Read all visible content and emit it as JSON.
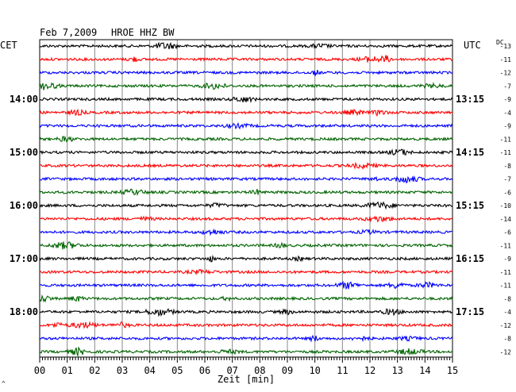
{
  "header": {
    "date": "Feb 7,2009",
    "station": "HROE HHZ BW",
    "left_tz": "CET",
    "right_tz": "UTC",
    "dc_label": "DC"
  },
  "footer": {
    "xlabel": "Zeit [min]",
    "corner_mark": "^"
  },
  "chart_data": {
    "type": "line",
    "title": "Feb 7,2009   HROE HHZ BW",
    "xlabel": "Zeit [min]",
    "ylabel": "",
    "xlim": [
      0,
      15
    ],
    "x_ticks": [
      "00",
      "01",
      "02",
      "03",
      "04",
      "05",
      "06",
      "07",
      "08",
      "09",
      "10",
      "11",
      "12",
      "13",
      "14",
      "15"
    ],
    "left_time_labels": [
      {
        "row": 4,
        "label": "14:00"
      },
      {
        "row": 8,
        "label": "15:00"
      },
      {
        "row": 12,
        "label": "16:00"
      },
      {
        "row": 16,
        "label": "17:00"
      },
      {
        "row": 20,
        "label": "18:00"
      }
    ],
    "right_time_labels": [
      {
        "row": 4,
        "label": "13:15"
      },
      {
        "row": 8,
        "label": "14:15"
      },
      {
        "row": 12,
        "label": "15:15"
      },
      {
        "row": 16,
        "label": "16:15"
      },
      {
        "row": 20,
        "label": "17:15"
      }
    ],
    "trace_colors": [
      "#000000",
      "#ff0000",
      "#0000ff",
      "#006400"
    ],
    "dc_offsets": [
      "-13",
      "-11",
      "-12",
      "-7",
      "-9",
      "-4",
      "-9",
      "-11",
      "-11",
      "-8",
      "-7",
      "-6",
      "-10",
      "-14",
      "-6",
      "-11",
      "-9",
      "-11",
      "-11",
      "-8",
      "-4",
      "-12",
      "-8",
      "-12"
    ],
    "grid": true,
    "trace_count": 24
  }
}
